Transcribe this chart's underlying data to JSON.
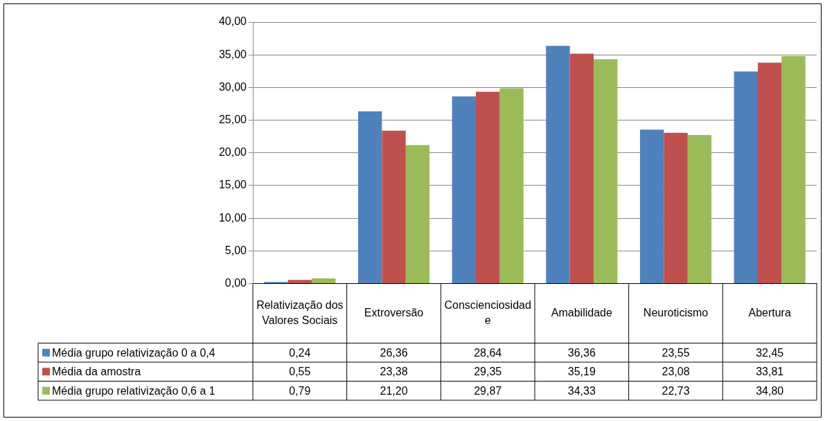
{
  "chart_data": {
    "type": "bar",
    "categories": [
      "Relativização dos Valores Sociais",
      "Extroversão",
      "Conscienciosidade",
      "Amabilidade",
      "Neuroticismo",
      "Abertura"
    ],
    "series": [
      {
        "name": "Média grupo relativização 0 a 0,4",
        "color": "#4f81bd",
        "values": [
          0.24,
          26.36,
          28.64,
          36.36,
          23.55,
          32.45
        ],
        "value_labels": [
          "0,24",
          "26,36",
          "28,64",
          "36,36",
          "23,55",
          "32,45"
        ]
      },
      {
        "name": "Média da amostra",
        "color": "#c0504d",
        "values": [
          0.55,
          23.38,
          29.35,
          35.19,
          23.08,
          33.81
        ],
        "value_labels": [
          "0,55",
          "23,38",
          "29,35",
          "35,19",
          "23,08",
          "33,81"
        ]
      },
      {
        "name": "Média grupo relativização 0,6 a 1",
        "color": "#9bbb59",
        "values": [
          0.79,
          21.2,
          29.87,
          34.33,
          22.73,
          34.8
        ],
        "value_labels": [
          "0,79",
          "21,20",
          "29,87",
          "34,33",
          "22,73",
          "34,80"
        ]
      }
    ],
    "ylim": [
      0,
      40
    ],
    "yticks": [
      {
        "value": 0,
        "label": "0,00"
      },
      {
        "value": 5,
        "label": "5,00"
      },
      {
        "value": 10,
        "label": "10,00"
      },
      {
        "value": 15,
        "label": "15,00"
      },
      {
        "value": 20,
        "label": "20,00"
      },
      {
        "value": 25,
        "label": "25,00"
      },
      {
        "value": 30,
        "label": "30,00"
      },
      {
        "value": 35,
        "label": "35,00"
      },
      {
        "value": 40,
        "label": "40,00"
      }
    ],
    "grid": "y",
    "legend": "bottom"
  }
}
